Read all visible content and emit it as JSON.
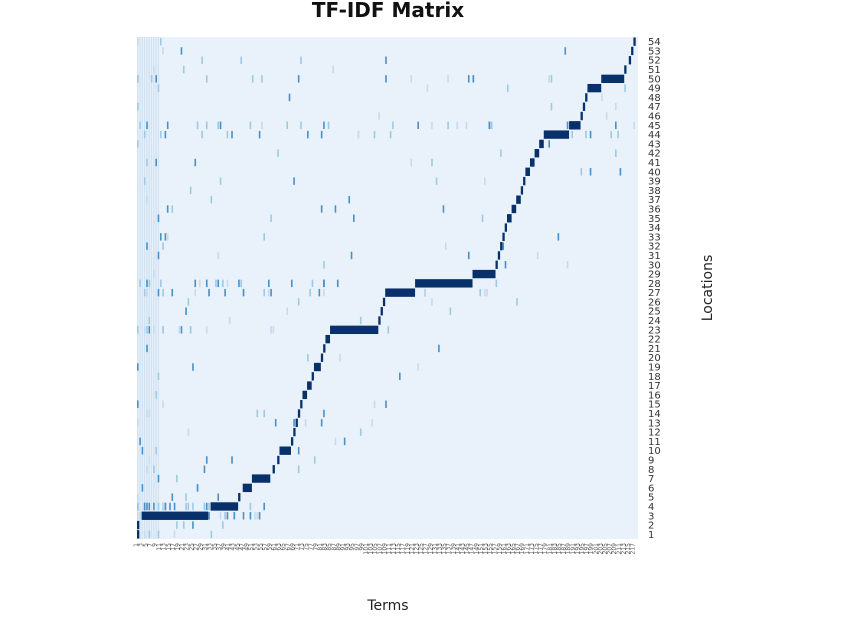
{
  "chart_data": {
    "type": "heatmap",
    "title": "TF-IDF Matrix",
    "xlabel": "Terms",
    "ylabel": "Locations",
    "term_count": 218,
    "location_count": 54,
    "ylim": [
      1,
      54
    ],
    "y_tick_labels": [
      "1",
      "2",
      "3",
      "4",
      "5",
      "6",
      "7",
      "8",
      "9",
      "10",
      "11",
      "12",
      "13",
      "14",
      "15",
      "16",
      "17",
      "18",
      "19",
      "20",
      "21",
      "22",
      "23",
      "24",
      "25",
      "26",
      "27",
      "28",
      "29",
      "30",
      "31",
      "32",
      "33",
      "34",
      "35",
      "36",
      "37",
      "38",
      "39",
      "40",
      "41",
      "42",
      "43",
      "44",
      "45",
      "46",
      "47",
      "48",
      "49",
      "50",
      "51",
      "52",
      "53",
      "54"
    ],
    "x_tick_labels": [
      "1",
      "3",
      "5",
      "7",
      "9",
      "11",
      "13",
      "15",
      "17",
      "19",
      "21",
      "23",
      "25",
      "27",
      "29",
      "31",
      "33",
      "35",
      "37",
      "39",
      "41",
      "43",
      "45",
      "47",
      "49",
      "51",
      "53",
      "55",
      "57",
      "59",
      "61",
      "63",
      "65",
      "67",
      "69",
      "71",
      "73",
      "75",
      "77",
      "79",
      "81",
      "83",
      "85",
      "87",
      "89",
      "91",
      "93",
      "95",
      "97",
      "99",
      "101",
      "103",
      "105",
      "107",
      "109",
      "111",
      "113",
      "115",
      "117",
      "119",
      "121",
      "123",
      "125",
      "127",
      "129",
      "131",
      "133",
      "135",
      "137",
      "139",
      "141",
      "143",
      "145",
      "147",
      "149",
      "151",
      "153",
      "155",
      "157",
      "159",
      "161",
      "163",
      "165",
      "167",
      "169",
      "171",
      "173",
      "175",
      "177",
      "179",
      "181",
      "183",
      "185",
      "187",
      "189",
      "191",
      "193",
      "195",
      "197",
      "199",
      "201",
      "203",
      "205",
      "207",
      "209",
      "211",
      "213",
      "215",
      "217"
    ],
    "colorscale": {
      "low": "#e9f2fa",
      "high": "#08306b",
      "mid": "#6baed6"
    },
    "cell_value_scale": [
      0,
      1
    ],
    "dominant_term_spans": [
      {
        "location": 1,
        "from": 1,
        "to": 1
      },
      {
        "location": 2,
        "from": 1,
        "to": 1
      },
      {
        "location": 3,
        "from": 3,
        "to": 31
      },
      {
        "location": 4,
        "from": 33,
        "to": 44
      },
      {
        "location": 5,
        "from": 45,
        "to": 45
      },
      {
        "location": 6,
        "from": 47,
        "to": 50
      },
      {
        "location": 7,
        "from": 51,
        "to": 58
      },
      {
        "location": 8,
        "from": 60,
        "to": 60
      },
      {
        "location": 9,
        "from": 62,
        "to": 62
      },
      {
        "location": 10,
        "from": 63,
        "to": 67
      },
      {
        "location": 11,
        "from": 68,
        "to": 68
      },
      {
        "location": 12,
        "from": 69,
        "to": 69
      },
      {
        "location": 13,
        "from": 70,
        "to": 70
      },
      {
        "location": 14,
        "from": 71,
        "to": 71
      },
      {
        "location": 15,
        "from": 72,
        "to": 72
      },
      {
        "location": 16,
        "from": 73,
        "to": 74
      },
      {
        "location": 17,
        "from": 75,
        "to": 76
      },
      {
        "location": 18,
        "from": 77,
        "to": 77
      },
      {
        "location": 19,
        "from": 78,
        "to": 80
      },
      {
        "location": 20,
        "from": 81,
        "to": 81
      },
      {
        "location": 21,
        "from": 82,
        "to": 82
      },
      {
        "location": 22,
        "from": 83,
        "to": 84
      },
      {
        "location": 23,
        "from": 85,
        "to": 105
      },
      {
        "location": 24,
        "from": 106,
        "to": 106
      },
      {
        "location": 25,
        "from": 107,
        "to": 107
      },
      {
        "location": 26,
        "from": 108,
        "to": 108
      },
      {
        "location": 27,
        "from": 109,
        "to": 121
      },
      {
        "location": 28,
        "from": 122,
        "to": 146
      },
      {
        "location": 29,
        "from": 147,
        "to": 156
      },
      {
        "location": 30,
        "from": 157,
        "to": 157
      },
      {
        "location": 31,
        "from": 158,
        "to": 158
      },
      {
        "location": 32,
        "from": 159,
        "to": 159
      },
      {
        "location": 33,
        "from": 160,
        "to": 160
      },
      {
        "location": 34,
        "from": 161,
        "to": 161
      },
      {
        "location": 35,
        "from": 162,
        "to": 163
      },
      {
        "location": 36,
        "from": 164,
        "to": 165
      },
      {
        "location": 37,
        "from": 166,
        "to": 167
      },
      {
        "location": 38,
        "from": 168,
        "to": 168
      },
      {
        "location": 39,
        "from": 169,
        "to": 169
      },
      {
        "location": 40,
        "from": 170,
        "to": 171
      },
      {
        "location": 41,
        "from": 172,
        "to": 173
      },
      {
        "location": 42,
        "from": 174,
        "to": 175
      },
      {
        "location": 43,
        "from": 176,
        "to": 177
      },
      {
        "location": 44,
        "from": 178,
        "to": 188
      },
      {
        "location": 45,
        "from": 189,
        "to": 193
      },
      {
        "location": 46,
        "from": 194,
        "to": 194
      },
      {
        "location": 47,
        "from": 195,
        "to": 195
      },
      {
        "location": 48,
        "from": 196,
        "to": 196
      },
      {
        "location": 49,
        "from": 197,
        "to": 202
      },
      {
        "location": 50,
        "from": 203,
        "to": 212
      },
      {
        "location": 51,
        "from": 213,
        "to": 213
      },
      {
        "location": 52,
        "from": 215,
        "to": 215
      },
      {
        "location": 53,
        "from": 216,
        "to": 216
      },
      {
        "location": 54,
        "from": 217,
        "to": 217
      }
    ]
  }
}
